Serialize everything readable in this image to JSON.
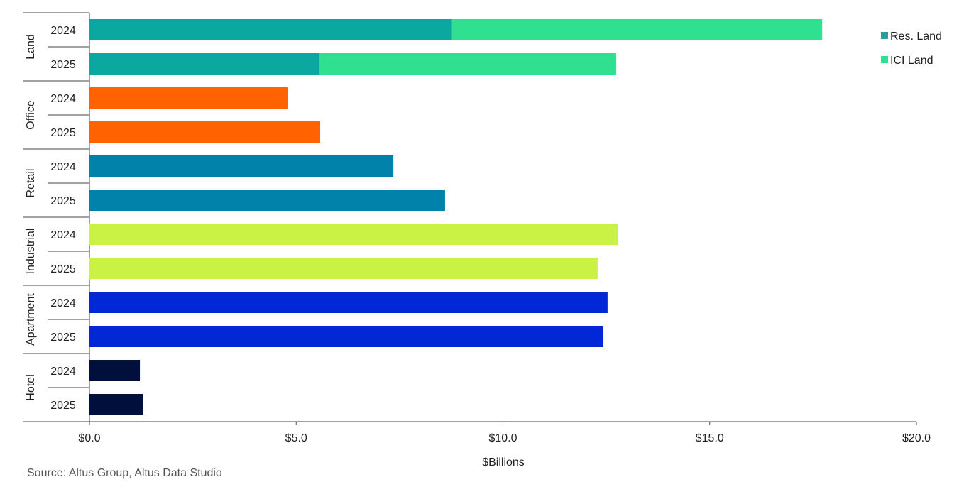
{
  "chart_data": {
    "type": "bar",
    "orientation": "horizontal",
    "stacked": true,
    "groups": [
      {
        "name": "Land",
        "rows": [
          {
            "year": "2024",
            "segments": [
              {
                "series": "Res. Land",
                "value": 8.77
              },
              {
                "series": "ICI Land",
                "value": 8.95
              }
            ]
          },
          {
            "year": "2025",
            "segments": [
              {
                "series": "Res. Land",
                "value": 5.56
              },
              {
                "series": "ICI Land",
                "value": 7.18
              }
            ]
          }
        ],
        "color": "#0aa89e"
      },
      {
        "name": "Office",
        "rows": [
          {
            "year": "2024",
            "segments": [
              {
                "value": 4.79
              }
            ]
          },
          {
            "year": "2025",
            "segments": [
              {
                "value": 5.58
              }
            ]
          }
        ],
        "color": "#ff6200"
      },
      {
        "name": "Retail",
        "rows": [
          {
            "year": "2024",
            "segments": [
              {
                "value": 7.35
              }
            ]
          },
          {
            "year": "2025",
            "segments": [
              {
                "value": 8.6
              }
            ]
          }
        ],
        "color": "#0082aa"
      },
      {
        "name": "Industrial",
        "rows": [
          {
            "year": "2024",
            "segments": [
              {
                "value": 12.79
              }
            ]
          },
          {
            "year": "2025",
            "segments": [
              {
                "value": 12.29
              }
            ]
          }
        ],
        "color": "#c9f244"
      },
      {
        "name": "Apartment",
        "rows": [
          {
            "year": "2024",
            "segments": [
              {
                "value": 12.53
              }
            ]
          },
          {
            "year": "2025",
            "segments": [
              {
                "value": 12.43
              }
            ]
          }
        ],
        "color": "#0028d6"
      },
      {
        "name": "Hotel",
        "rows": [
          {
            "year": "2024",
            "segments": [
              {
                "value": 1.22
              }
            ]
          },
          {
            "year": "2025",
            "segments": [
              {
                "value": 1.3
              }
            ]
          }
        ],
        "color": "#000f3c"
      }
    ],
    "series_colors": {
      "Res. Land": "#0aa89e",
      "ICI Land": "#2ee08f"
    },
    "legend": [
      {
        "name": "Res. Land",
        "color": "#2a9d9a"
      },
      {
        "name": "ICI Land",
        "color": "#2ee08f"
      }
    ],
    "legend_position": "top-right",
    "xlim": [
      0,
      20
    ],
    "xticks": [
      0,
      5,
      10,
      15,
      20
    ],
    "xtick_labels": [
      "$0.0",
      "$5.0",
      "$10.0",
      "$15.0",
      "$20.0"
    ],
    "xlabel": "$Billions",
    "grid": false
  },
  "source": "Source:  Altus Group, Altus Data Studio"
}
